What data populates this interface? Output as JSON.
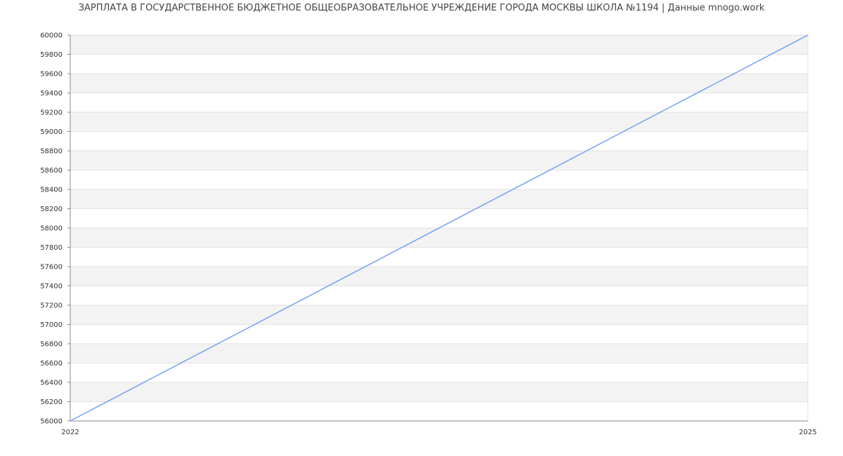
{
  "chart_data": {
    "type": "line",
    "title": "ЗАРПЛАТА В ГОСУДАРСТВЕННОЕ БЮДЖЕТНОЕ ОБЩЕОБРАЗОВАТЕЛЬНОЕ УЧРЕЖДЕНИЕ ГОРОДА МОСКВЫ ШКОЛА №1194 | Данные mnogo.work",
    "xlabel": "",
    "ylabel": "",
    "x": [
      2022,
      2025
    ],
    "x_ticks": [
      "2022",
      "2025"
    ],
    "series": [
      {
        "values": [
          56000,
          60000
        ],
        "color": "#779ff5"
      }
    ],
    "ylim": [
      56000,
      60000
    ],
    "y_ticks": [
      56000,
      56200,
      56400,
      56600,
      56800,
      57000,
      57200,
      57400,
      57600,
      57800,
      58000,
      58200,
      58400,
      58600,
      58800,
      59000,
      59200,
      59400,
      59600,
      59800,
      60000
    ],
    "grid": true,
    "band_color": "#f3f3f3",
    "legend": "none"
  }
}
